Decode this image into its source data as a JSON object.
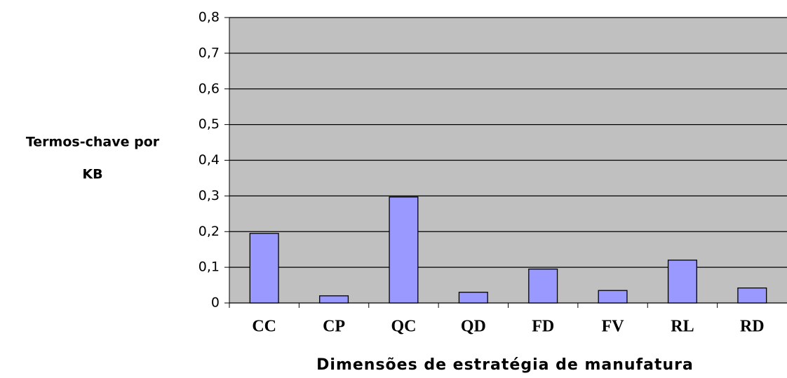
{
  "chart_data": {
    "type": "bar",
    "categories": [
      "CC",
      "CP",
      "QC",
      "QD",
      "FD",
      "FV",
      "RL",
      "RD"
    ],
    "values": [
      0.195,
      0.02,
      0.297,
      0.03,
      0.095,
      0.035,
      0.12,
      0.042
    ],
    "color": "#9999ff",
    "ylabel": [
      "Termos-chave por",
      "KB"
    ],
    "xlabel": "Dimensões de estratégia de manufatura",
    "ylim": [
      0,
      0.8
    ],
    "yticks": [
      0,
      {
        "value": 0.1,
        "label": "0,1"
      },
      {
        "value": 0.2,
        "label": "0,2"
      },
      {
        "value": 0.3,
        "label": "0,3"
      },
      {
        "value": 0.4,
        "label": "0,4"
      },
      {
        "value": 0.5,
        "label": "0,5"
      },
      {
        "value": 0.6,
        "label": "0,6"
      },
      {
        "value": 0.7,
        "label": "0,7"
      },
      {
        "value": 0.8,
        "label": "0,8"
      }
    ],
    "grid": true
  }
}
